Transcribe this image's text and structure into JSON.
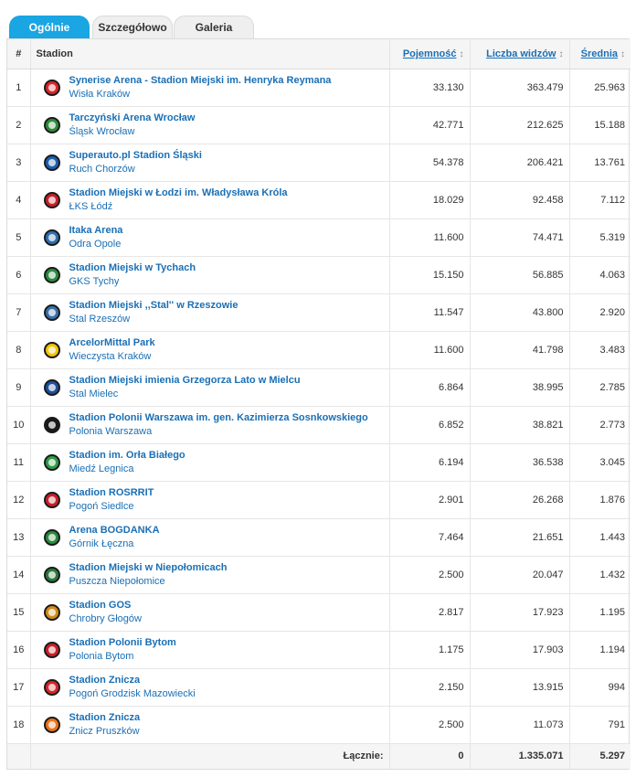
{
  "tabs": [
    {
      "label": "Ogólnie",
      "active": true
    },
    {
      "label": "Szczegółowo",
      "active": false
    },
    {
      "label": "Galeria",
      "active": false
    }
  ],
  "header": {
    "num": "#",
    "stadium": "Stadion",
    "capacity": "Pojemność",
    "spectators": "Liczba widzów",
    "average": "Średnia",
    "sort_glyph": "↕"
  },
  "rows": [
    {
      "n": "1",
      "stadium": "Synerise Arena - Stadion Miejski im. Henryka Reymana",
      "club": "Wisła Kraków",
      "capacity": "33.130",
      "spectators": "363.479",
      "average": "25.963",
      "crest": "wisla-krakow-crest-icon",
      "color": "#d9252b"
    },
    {
      "n": "2",
      "stadium": "Tarczyński Arena Wrocław",
      "club": "Śląsk Wrocław",
      "capacity": "42.771",
      "spectators": "212.625",
      "average": "15.188",
      "crest": "slask-wroclaw-crest-icon",
      "color": "#2e8b3a"
    },
    {
      "n": "3",
      "stadium": "Superauto.pl Stadion Śląski",
      "club": "Ruch Chorzów",
      "capacity": "54.378",
      "spectators": "206.421",
      "average": "13.761",
      "crest": "ruch-chorzow-crest-icon",
      "color": "#1c5fae"
    },
    {
      "n": "4",
      "stadium": "Stadion Miejski w Łodzi im. Władysława Króla",
      "club": "ŁKS Łódź",
      "capacity": "18.029",
      "spectators": "92.458",
      "average": "7.112",
      "crest": "lks-lodz-crest-icon",
      "color": "#c8202a"
    },
    {
      "n": "5",
      "stadium": "Itaka Arena",
      "club": "Odra Opole",
      "capacity": "11.600",
      "spectators": "74.471",
      "average": "5.319",
      "crest": "odra-opole-crest-icon",
      "color": "#2f6fb0"
    },
    {
      "n": "6",
      "stadium": "Stadion Miejski w Tychach",
      "club": "GKS Tychy",
      "capacity": "15.150",
      "spectators": "56.885",
      "average": "4.063",
      "crest": "gks-tychy-crest-icon",
      "color": "#2a8a3e"
    },
    {
      "n": "7",
      "stadium": "Stadion Miejski ,,Stal'' w Rzeszowie",
      "club": "Stal Rzeszów",
      "capacity": "11.547",
      "spectators": "43.800",
      "average": "2.920",
      "crest": "stal-rzeszow-crest-icon",
      "color": "#3a6fa8"
    },
    {
      "n": "8",
      "stadium": "ArcelorMittal Park",
      "club": "Wieczysta Kraków",
      "capacity": "11.600",
      "spectators": "41.798",
      "average": "3.483",
      "crest": "wieczysta-krakow-crest-icon",
      "color": "#f2c500"
    },
    {
      "n": "9",
      "stadium": "Stadion Miejski imienia Grzegorza Lato w Mielcu",
      "club": "Stal Mielec",
      "capacity": "6.864",
      "spectators": "38.995",
      "average": "2.785",
      "crest": "stal-mielec-crest-icon",
      "color": "#1f4e9c"
    },
    {
      "n": "10",
      "stadium": "Stadion Polonii Warszawa im. gen. Kazimierza Sosnkowskiego",
      "club": "Polonia Warszawa",
      "capacity": "6.852",
      "spectators": "38.821",
      "average": "2.773",
      "crest": "polonia-warszawa-crest-icon",
      "color": "#1a1a1a"
    },
    {
      "n": "11",
      "stadium": "Stadion im. Orła Białego",
      "club": "Miedź Legnica",
      "capacity": "6.194",
      "spectators": "36.538",
      "average": "3.045",
      "crest": "miedz-legnica-crest-icon",
      "color": "#2e9b46"
    },
    {
      "n": "12",
      "stadium": "Stadion ROSRRIT",
      "club": "Pogoń Siedlce",
      "capacity": "2.901",
      "spectators": "26.268",
      "average": "1.876",
      "crest": "pogon-siedlce-crest-icon",
      "color": "#c8202a"
    },
    {
      "n": "13",
      "stadium": "Arena BOGDANKA",
      "club": "Górnik Łęczna",
      "capacity": "7.464",
      "spectators": "21.651",
      "average": "1.443",
      "crest": "gornik-leczna-crest-icon",
      "color": "#2a8a3e"
    },
    {
      "n": "14",
      "stadium": "Stadion Miejski w Niepołomicach",
      "club": "Puszcza Niepołomice",
      "capacity": "2.500",
      "spectators": "20.047",
      "average": "1.432",
      "crest": "puszcza-niepolomice-crest-icon",
      "color": "#2a7a3a"
    },
    {
      "n": "15",
      "stadium": "Stadion GOS",
      "club": "Chrobry Głogów",
      "capacity": "2.817",
      "spectators": "17.923",
      "average": "1.195",
      "crest": "chrobry-glogow-crest-icon",
      "color": "#d08a1a"
    },
    {
      "n": "16",
      "stadium": "Stadion Polonii Bytom",
      "club": "Polonia Bytom",
      "capacity": "1.175",
      "spectators": "17.903",
      "average": "1.194",
      "crest": "polonia-bytom-crest-icon",
      "color": "#c8202a"
    },
    {
      "n": "17",
      "stadium": "Stadion Znicza",
      "club": "Pogoń Grodzisk Mazowiecki",
      "capacity": "2.150",
      "spectators": "13.915",
      "average": "994",
      "crest": "pogon-grodzisk-crest-icon",
      "color": "#d9252b"
    },
    {
      "n": "18",
      "stadium": "Stadion Znicza",
      "club": "Znicz Pruszków",
      "capacity": "2.500",
      "spectators": "11.073",
      "average": "791",
      "crest": "znicz-pruszkow-crest-icon",
      "color": "#e8731a"
    }
  ],
  "footer": {
    "label": "Łącznie:",
    "capacity": "0",
    "spectators": "1.335.071",
    "average": "5.297"
  }
}
